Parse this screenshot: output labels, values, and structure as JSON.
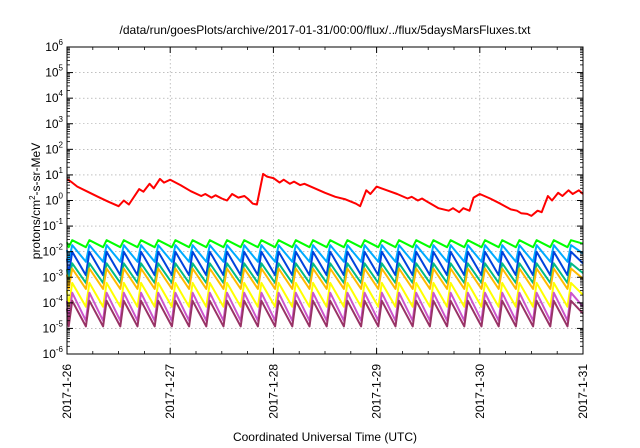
{
  "chart_data": {
    "type": "line",
    "title": "/data/run/goesPlots/archive/2017-01-31/00:00/flux/../flux/5daysMarsFluxes.txt",
    "xlabel": "Coordinated Universal Time (UTC)",
    "ylabel": "protons/cm²-s-sr-MeV",
    "ylabel_base": "protons/cm",
    "ylabel_sup": "2",
    "ylabel_rest": "-s-sr-MeV",
    "x_scale": "time",
    "y_scale": "log",
    "xlim": [
      "2017-01-26",
      "2017-01-31"
    ],
    "ylim": [
      1e-06,
      1000000
    ],
    "xticks": [
      {
        "value": "2017-01-26",
        "label": "2017-1-26"
      },
      {
        "value": "2017-01-27",
        "label": "2017-1-27"
      },
      {
        "value": "2017-01-28",
        "label": "2017-1-28"
      },
      {
        "value": "2017-01-29",
        "label": "2017-1-29"
      },
      {
        "value": "2017-01-30",
        "label": "2017-1-30"
      },
      {
        "value": "2017-01-31",
        "label": "2017-1-31"
      }
    ],
    "yticks": [
      {
        "exp": -6,
        "base": "10",
        "sup": "-6"
      },
      {
        "exp": -5,
        "base": "10",
        "sup": "-5"
      },
      {
        "exp": -4,
        "base": "10",
        "sup": "-4"
      },
      {
        "exp": -3,
        "base": "10",
        "sup": "-3"
      },
      {
        "exp": -2,
        "base": "10",
        "sup": "-2"
      },
      {
        "exp": -1,
        "base": "10",
        "sup": "-1"
      },
      {
        "exp": 0,
        "base": "10",
        "sup": "0"
      },
      {
        "exp": 1,
        "base": "10",
        "sup": "1"
      },
      {
        "exp": 2,
        "base": "10",
        "sup": "2"
      },
      {
        "exp": 3,
        "base": "10",
        "sup": "3"
      },
      {
        "exp": 4,
        "base": "10",
        "sup": "4"
      },
      {
        "exp": 5,
        "base": "10",
        "sup": "5"
      },
      {
        "exp": 6,
        "base": "10",
        "sup": "6"
      }
    ],
    "grid": true,
    "legend": "none",
    "series": [
      {
        "color": "#ff0000",
        "x": [
          "2017-01-26 00:00",
          "2017-01-26 01:12",
          "2017-01-26 02:24",
          "2017-01-26 04:48",
          "2017-01-26 07:12",
          "2017-01-26 09:36",
          "2017-01-26 12:00",
          "2017-01-26 13:12",
          "2017-01-26 14:24",
          "2017-01-26 16:48",
          "2017-01-26 17:46",
          "2017-01-26 19:12",
          "2017-01-26 20:10",
          "2017-01-26 21:36",
          "2017-01-26 22:34",
          "2017-01-27 00:00",
          "2017-01-27 02:24",
          "2017-01-27 04:48",
          "2017-01-27 07:12",
          "2017-01-27 08:10",
          "2017-01-27 09:36",
          "2017-01-27 10:34",
          "2017-01-27 12:00",
          "2017-01-27 13:12",
          "2017-01-27 14:24",
          "2017-01-27 15:50",
          "2017-01-27 17:16",
          "2017-01-27 18:14",
          "2017-01-27 19:12",
          "2017-01-27 20:10",
          "2017-01-27 21:36",
          "2017-01-27 22:34",
          "2017-01-28 00:00",
          "2017-01-28 01:26",
          "2017-01-28 02:24",
          "2017-01-28 03:50",
          "2017-01-28 04:48",
          "2017-01-28 06:14",
          "2017-01-28 07:12",
          "2017-01-28 09:36",
          "2017-01-28 12:00",
          "2017-01-28 14:24",
          "2017-01-28 16:48",
          "2017-01-28 19:12",
          "2017-01-28 20:10",
          "2017-01-28 21:36",
          "2017-01-28 22:34",
          "2017-01-29 00:00",
          "2017-01-29 02:24",
          "2017-01-29 04:48",
          "2017-01-29 07:12",
          "2017-01-29 08:10",
          "2017-01-29 09:36",
          "2017-01-29 10:34",
          "2017-01-29 12:00",
          "2017-01-29 13:12",
          "2017-01-29 14:24",
          "2017-01-29 16:48",
          "2017-01-29 17:46",
          "2017-01-29 19:12",
          "2017-01-29 20:10",
          "2017-01-29 21:36",
          "2017-01-29 22:34",
          "2017-01-30 00:00",
          "2017-01-30 02:24",
          "2017-01-30 04:48",
          "2017-01-30 06:14",
          "2017-01-30 07:12",
          "2017-01-30 08:38",
          "2017-01-30 09:36",
          "2017-01-30 11:02",
          "2017-01-30 12:00",
          "2017-01-30 13:26",
          "2017-01-30 14:24",
          "2017-01-30 15:50",
          "2017-01-30 16:48",
          "2017-01-30 18:14",
          "2017-01-30 19:12",
          "2017-01-30 20:38",
          "2017-01-30 21:36",
          "2017-01-30 23:02",
          "2017-01-31 00:00"
        ],
        "y": [
          7.0,
          5.0,
          3.5,
          2.2,
          1.4,
          0.9,
          0.6,
          1.0,
          0.7,
          2.8,
          2.2,
          4.5,
          3.0,
          7.0,
          5.0,
          6.5,
          4.0,
          2.3,
          1.5,
          1.8,
          1.3,
          1.6,
          1.2,
          1.0,
          1.8,
          1.3,
          1.5,
          1.1,
          0.75,
          0.7,
          11.0,
          8.5,
          7.5,
          5.0,
          6.5,
          4.5,
          5.5,
          4.0,
          4.5,
          3.0,
          2.0,
          1.4,
          1.1,
          0.75,
          0.6,
          2.5,
          1.8,
          3.5,
          2.5,
          1.8,
          1.2,
          1.4,
          1.0,
          1.2,
          0.85,
          0.65,
          0.5,
          0.4,
          0.5,
          0.35,
          0.5,
          0.4,
          1.3,
          1.8,
          1.2,
          0.75,
          0.55,
          0.45,
          0.4,
          0.32,
          0.3,
          0.25,
          0.4,
          0.35,
          1.5,
          1.0,
          2.0,
          1.5,
          2.5,
          1.8,
          2.5,
          1.8
        ]
      }
    ],
    "sawtooth_series": [
      {
        "color": "#00ff00",
        "peak": 0.028,
        "trough": 0.015
      },
      {
        "color": "#00aaff",
        "peak": 0.018,
        "trough": 0.004
      },
      {
        "color": "#0044dd",
        "peak": 0.01,
        "trough": 0.0012
      },
      {
        "color": "#00bb88",
        "peak": 0.0035,
        "trough": 0.0006
      },
      {
        "color": "#ffbb00",
        "peak": 0.0022,
        "trough": 0.00035
      },
      {
        "color": "#ffff00",
        "peak": 0.0006,
        "trough": 7e-05
      },
      {
        "color": "#cc55cc",
        "peak": 0.00025,
        "trough": 2e-05
      },
      {
        "color": "#993366",
        "peak": 0.00012,
        "trough": 1.2e-05
      }
    ],
    "sawtooth_period_hours": 4.0,
    "sawtooth_phase_hours": 1.2
  }
}
